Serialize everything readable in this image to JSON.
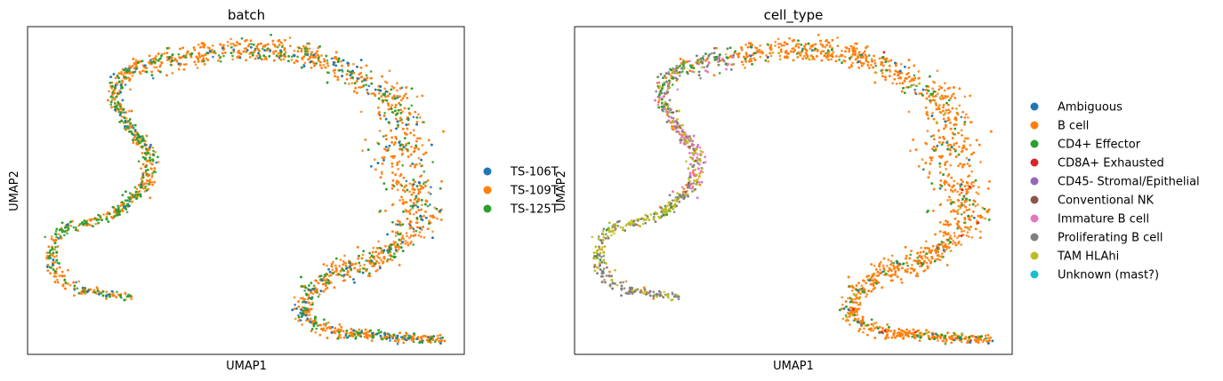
{
  "chart_data": [
    {
      "type": "scatter",
      "title": "batch",
      "xlabel": "UMAP1",
      "ylabel": "UMAP2",
      "xlim": [
        0,
        100
      ],
      "ylim": [
        0,
        100
      ],
      "grid": false,
      "legend_position": "right",
      "series": [
        {
          "name": "TS-106T",
          "color": "#1f77b4"
        },
        {
          "name": "TS-109T",
          "color": "#ff7f0e"
        },
        {
          "name": "TS-125T",
          "color": "#2ca02c"
        }
      ],
      "mixture": [
        0.08,
        0.72,
        0.2
      ],
      "dominant_series": {
        "B cell": "TS-109T",
        "Proliferating B cell": "TS-109T",
        "TAM HLAhi": "TS-125T"
      }
    },
    {
      "type": "scatter",
      "title": "cell_type",
      "xlabel": "UMAP1",
      "ylabel": "UMAP2",
      "xlim": [
        0,
        100
      ],
      "ylim": [
        0,
        100
      ],
      "grid": false,
      "legend_position": "right",
      "series": [
        {
          "name": "Ambiguous",
          "color": "#1f77b4"
        },
        {
          "name": "B cell",
          "color": "#ff7f0e"
        },
        {
          "name": "CD4+ Effector",
          "color": "#2ca02c"
        },
        {
          "name": "CD8A+ Exhausted",
          "color": "#d62728"
        },
        {
          "name": "CD45- Stromal/Epithelial",
          "color": "#9467bd"
        },
        {
          "name": "Conventional NK",
          "color": "#8c564b"
        },
        {
          "name": "Immature B cell",
          "color": "#e377c2"
        },
        {
          "name": "Proliferating B cell",
          "color": "#7f7f7f"
        },
        {
          "name": "TAM HLAhi",
          "color": "#bcbd22"
        },
        {
          "name": "Unknown (mast?)",
          "color": "#17becf"
        }
      ]
    }
  ],
  "embedding_path": {
    "x": [
      24.7,
      10.1,
      4.9,
      7.3,
      19.9,
      27.6,
      27.9,
      24.1,
      20.2,
      20.3,
      23.7,
      37.7,
      52.5,
      67.1,
      79.2,
      84.6,
      85.6,
      86.8,
      91.5,
      86.7,
      81.4,
      72.2,
      65.1,
      62.3,
      68.4,
      88.2,
      95.0
    ],
    "y": [
      17.1,
      20.0,
      27.9,
      37.8,
      42.5,
      52.4,
      61.9,
      67.4,
      76.9,
      82.9,
      86.8,
      91.4,
      93.5,
      90.5,
      81.5,
      74.9,
      65.1,
      50.3,
      46.1,
      35.5,
      28.9,
      26.3,
      20.4,
      12.6,
      7.0,
      4.9,
      4.6
    ],
    "band_width": [
      1.4,
      1.6,
      1.6,
      1.6,
      1.6,
      2.2,
      1.8,
      1.4,
      1.4,
      2.2,
      3.0,
      3.4,
      3.4,
      4.0,
      5.0,
      5.8,
      6.4,
      6.4,
      5.8,
      4.0,
      3.4,
      3.4,
      2.6,
      2.2,
      1.8,
      1.4,
      1.2
    ]
  }
}
